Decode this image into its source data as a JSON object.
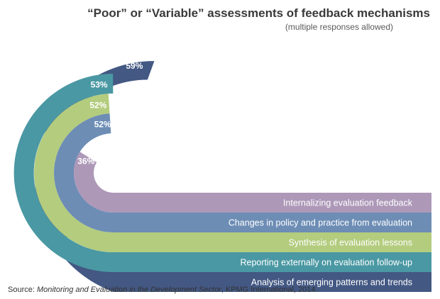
{
  "chart_data": {
    "type": "bar",
    "title": "“Poor” or “Variable” assessments of feedback mechanisms",
    "subtitle": "(multiple responses allowed)",
    "categories": [
      "Internalizing evaluation feedback",
      "Changes in policy and practice from evaluation",
      "Synthesis of evaluation lessons",
      "Reporting externally on evaluation follow-up",
      "Analysis of emerging patterns and trends"
    ],
    "values": [
      36,
      52,
      52,
      53,
      59
    ],
    "value_labels": [
      "36%",
      "52%",
      "52%",
      "53%",
      "59%"
    ],
    "colors": [
      "#ad98b8",
      "#6d8db5",
      "#b3cc7e",
      "#4a98a3",
      "#435883"
    ]
  },
  "source": {
    "prefix": "Source: ",
    "title": "Monitoring and Evaluation in the Development Sector",
    "suffix": ", KPMG International, 2014."
  }
}
